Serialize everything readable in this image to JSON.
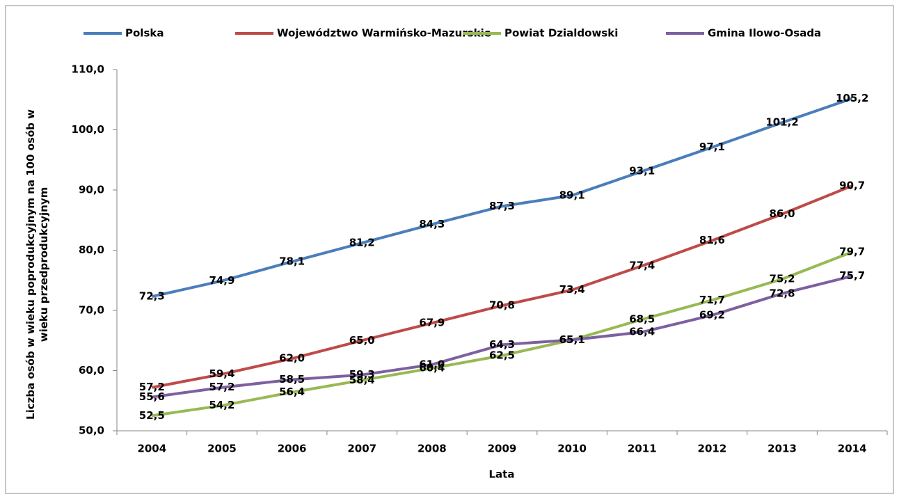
{
  "chart_data": {
    "type": "line",
    "categories": [
      "2004",
      "2005",
      "2006",
      "2007",
      "2008",
      "2009",
      "2010",
      "2011",
      "2012",
      "2013",
      "2014"
    ],
    "series": [
      {
        "name": "Polska",
        "color": "#4a7ebb",
        "values": [
          72.3,
          74.9,
          78.1,
          81.2,
          84.3,
          87.3,
          89.1,
          93.1,
          97.1,
          101.2,
          105.2
        ],
        "value_labels": [
          "72,3",
          "74,9",
          "78,1",
          "81,2",
          "84,3",
          "87,3",
          "89,1",
          "93,1",
          "97,1",
          "101,2",
          "105,2"
        ]
      },
      {
        "name": "Województwo Warmińsko-Mazurskie",
        "color": "#be4b48",
        "values": [
          57.2,
          59.4,
          62.0,
          65.0,
          67.9,
          70.8,
          73.4,
          77.4,
          81.6,
          86.0,
          90.7
        ],
        "value_labels": [
          "57,2",
          "59,4",
          "62,0",
          "65,0",
          "67,9",
          "70,8",
          "73,4",
          "77,4",
          "81,6",
          "86,0",
          "90,7"
        ]
      },
      {
        "name": "Powiat Dzialdowski",
        "color": "#98b954",
        "values": [
          52.5,
          54.2,
          56.4,
          58.4,
          60.4,
          62.5,
          65.1,
          68.5,
          71.7,
          75.2,
          79.7
        ],
        "value_labels": [
          "52,5",
          "54,2",
          "56,4",
          "58,4",
          "60,4",
          "62,5",
          "65,1",
          "68,5",
          "71,7",
          "75,2",
          "79,7"
        ]
      },
      {
        "name": "Gmina Ilowo-Osada",
        "color": "#7d60a0",
        "values": [
          55.6,
          57.2,
          58.5,
          59.3,
          61.0,
          64.3,
          65.1,
          66.4,
          69.2,
          72.8,
          75.7
        ],
        "value_labels": [
          "55,6",
          "57,2",
          "58,5",
          "59,3",
          "61,0",
          "64,3",
          "65,1",
          "66,4",
          "69,2",
          "72,8",
          "75,7"
        ]
      }
    ],
    "ylim": [
      50,
      110
    ],
    "yticks": [
      {
        "value": 50,
        "label": "50,0"
      },
      {
        "value": 60,
        "label": "60,0"
      },
      {
        "value": 70,
        "label": "70,0"
      },
      {
        "value": 80,
        "label": "80,0"
      },
      {
        "value": 90,
        "label": "90,0"
      },
      {
        "value": 100,
        "label": "100,0"
      },
      {
        "value": 110,
        "label": "110,0"
      }
    ],
    "x_label": "Lata",
    "y_label": "Liczba osób w wieku poprodukcyjnym na 100 osób w wieku przedprodukcyjnym",
    "legend": "top"
  }
}
